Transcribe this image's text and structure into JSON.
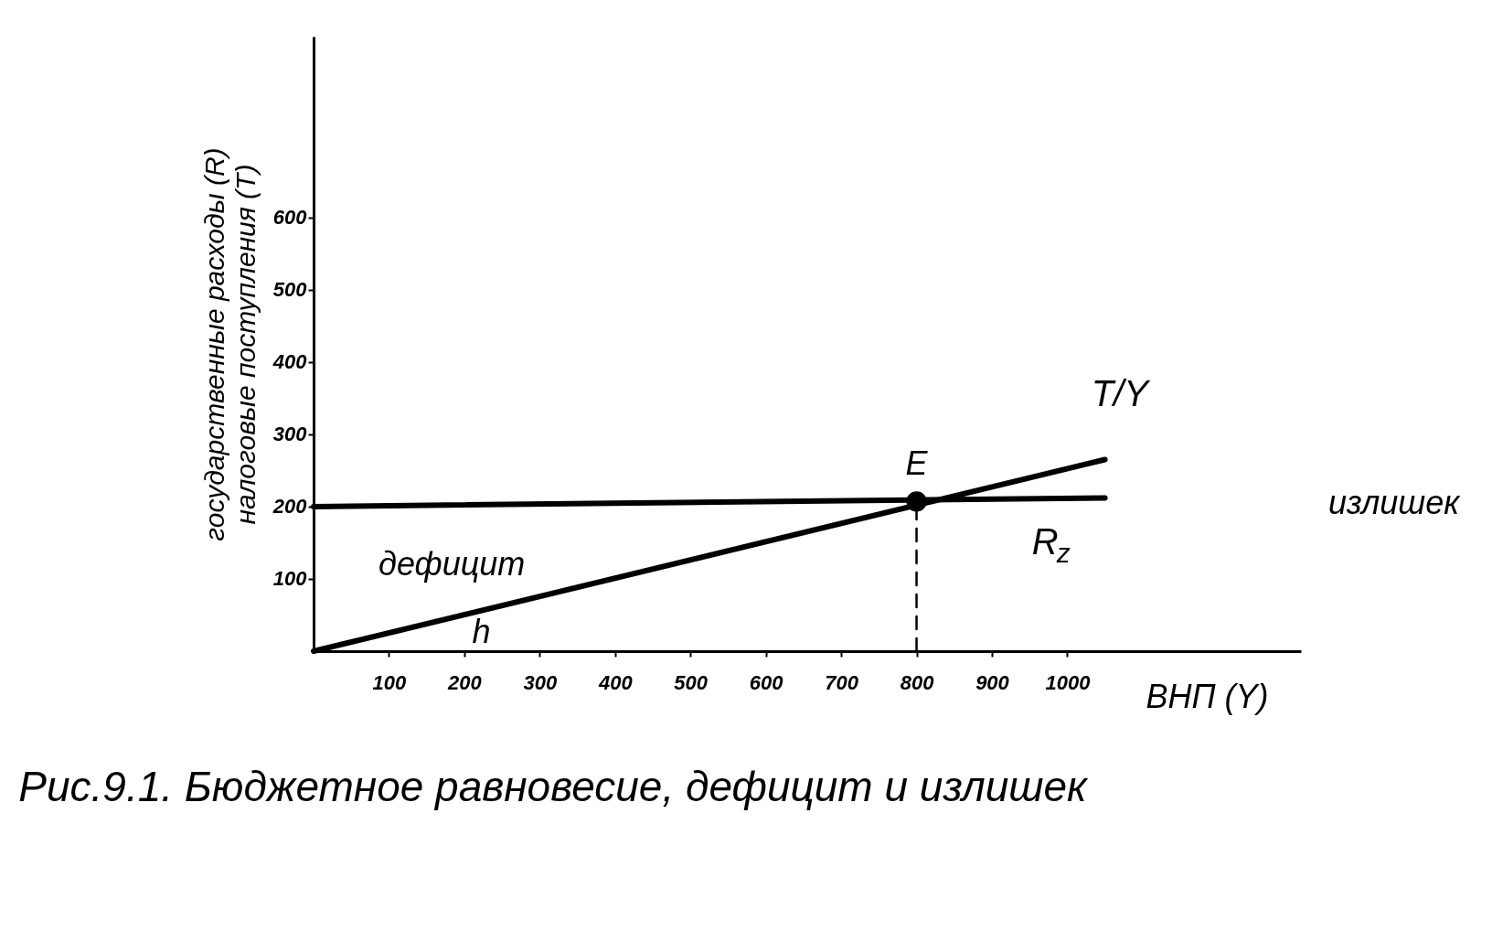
{
  "chart_data": {
    "type": "line",
    "title": "Рис.9.1. Бюджетное равновесие, дефицит и излишек",
    "xlabel": "ВНП (Y)",
    "ylabel": "государственные расходы (R)\nналоговые поступления (T)",
    "xlim": [
      0,
      1310
    ],
    "ylim": [
      0,
      850
    ],
    "xticks": [
      100,
      200,
      300,
      400,
      500,
      600,
      700,
      800,
      900,
      {
        "value": 1000,
        "label": "1000"
      }
    ],
    "yticks": [
      100,
      200,
      300,
      400,
      500,
      600
    ],
    "grid": false,
    "series": [
      {
        "name": "T/Y",
        "color": "#000000",
        "x": [
          0,
          1050
        ],
        "values": [
          0,
          265
        ]
      },
      {
        "name": "R$_{z}$",
        "color": "#000000",
        "x": [
          0,
          1050
        ],
        "values": [
          200,
          212
        ]
      },
      {
        "type": "line",
        "line_style": "dashed",
        "color": "#000000",
        "x": [
          800,
          800
        ],
        "values": [
          0,
          207
        ]
      },
      {
        "type": "scatter",
        "marker": "circle",
        "color": "#000000",
        "x": [
          800
        ],
        "values": [
          207
        ]
      }
    ],
    "annotations": [
      {
        "text": "E",
        "x": 800,
        "y": 207
      },
      "дефицит",
      "излишек",
      "h"
    ]
  }
}
